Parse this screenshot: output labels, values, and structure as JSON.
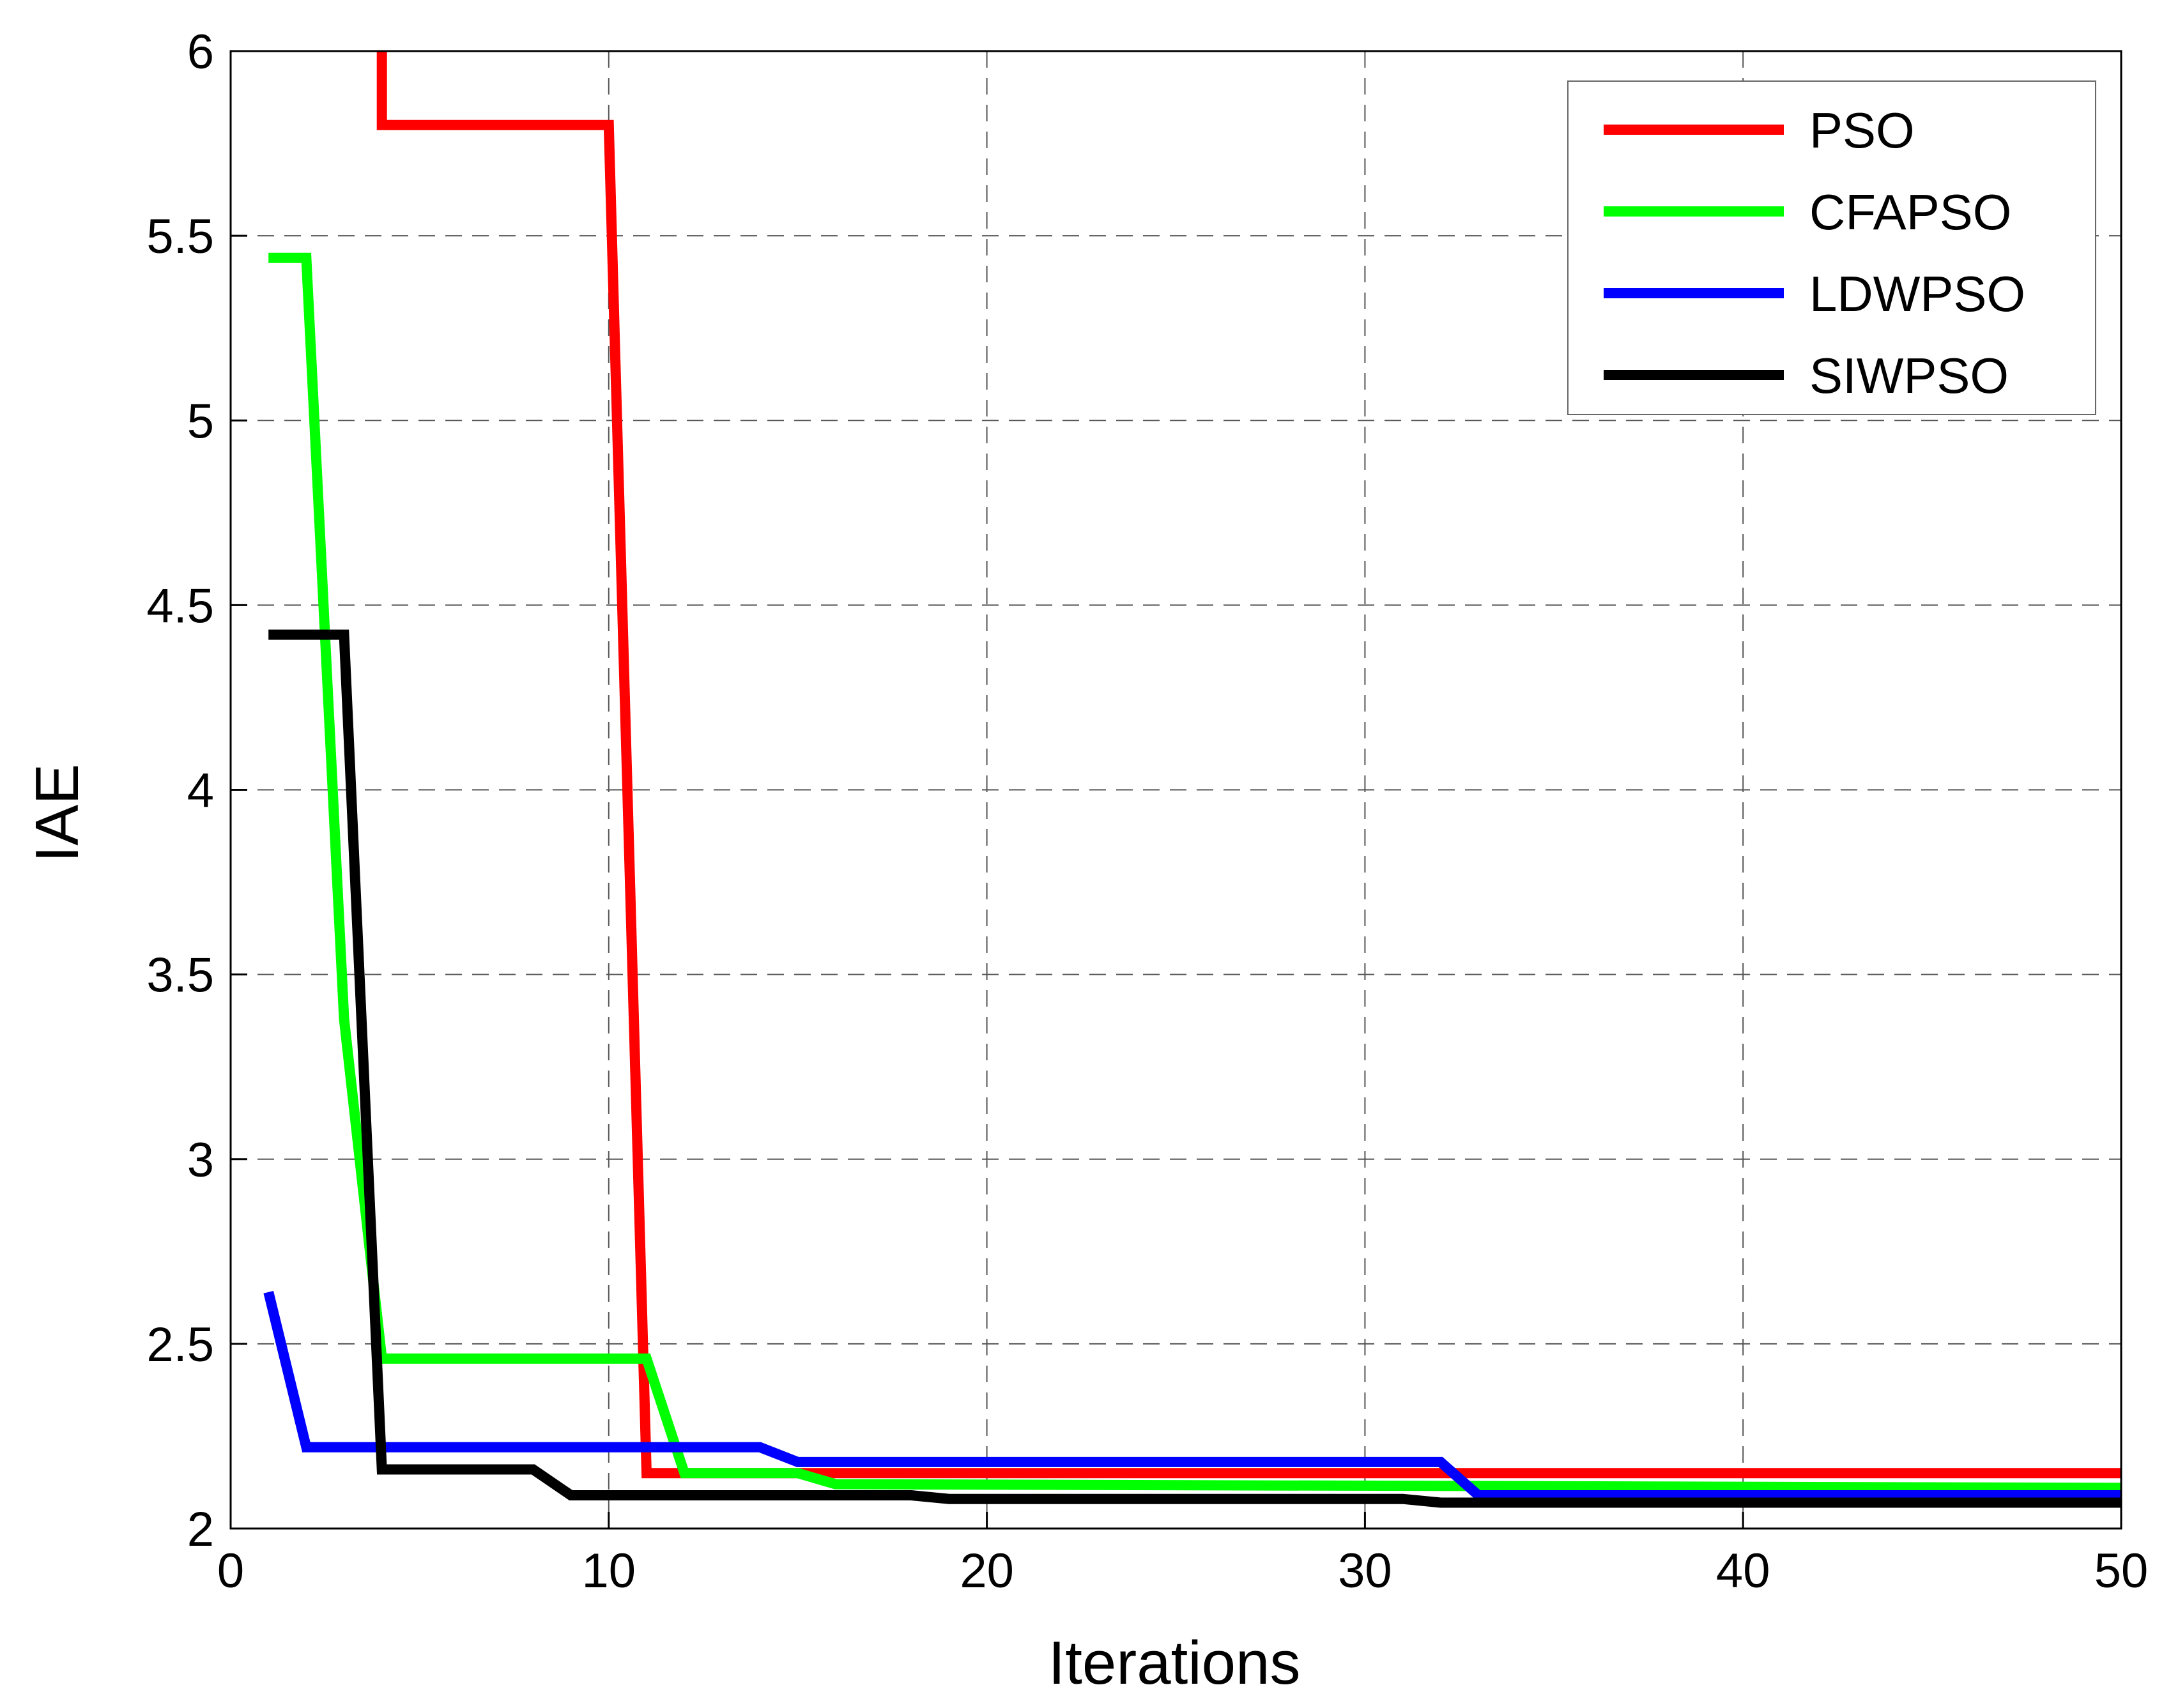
{
  "chart_data": {
    "type": "line",
    "xlabel": "Iterations",
    "ylabel": "IAE",
    "xlim": [
      0,
      50
    ],
    "ylim": [
      2,
      6
    ],
    "xticks": [
      0,
      10,
      20,
      30,
      40,
      50
    ],
    "yticks": [
      2,
      2.5,
      3,
      3.5,
      4,
      4.5,
      5,
      5.5,
      6
    ],
    "ytick_labels": [
      "2",
      "2.5",
      "3",
      "3.5",
      "4",
      "4.5",
      "5",
      "5.5",
      "6"
    ],
    "grid": true,
    "grid_style": "dashed",
    "legend_position": "top-right",
    "series": [
      {
        "name": "PSO",
        "color": "#ff0000",
        "x": [
          4,
          4,
          10,
          11,
          50
        ],
        "y": [
          6.2,
          5.8,
          5.8,
          2.15,
          2.15
        ]
      },
      {
        "name": "CFAPSO",
        "color": "#00ff00",
        "x": [
          1,
          2,
          3,
          4,
          11,
          12,
          15,
          16,
          50
        ],
        "y": [
          5.44,
          5.44,
          3.38,
          2.46,
          2.46,
          2.15,
          2.15,
          2.12,
          2.11
        ]
      },
      {
        "name": "LDWPSO",
        "color": "#0000ff",
        "x": [
          1,
          2,
          14,
          15,
          32,
          33,
          50
        ],
        "y": [
          2.64,
          2.22,
          2.22,
          2.18,
          2.18,
          2.09,
          2.09
        ]
      },
      {
        "name": "SIWPSO",
        "color": "#000000",
        "x": [
          1,
          3,
          4,
          8,
          9,
          18,
          19,
          31,
          32,
          50
        ],
        "y": [
          4.42,
          4.42,
          2.16,
          2.16,
          2.09,
          2.09,
          2.08,
          2.08,
          2.07,
          2.07
        ]
      }
    ]
  }
}
